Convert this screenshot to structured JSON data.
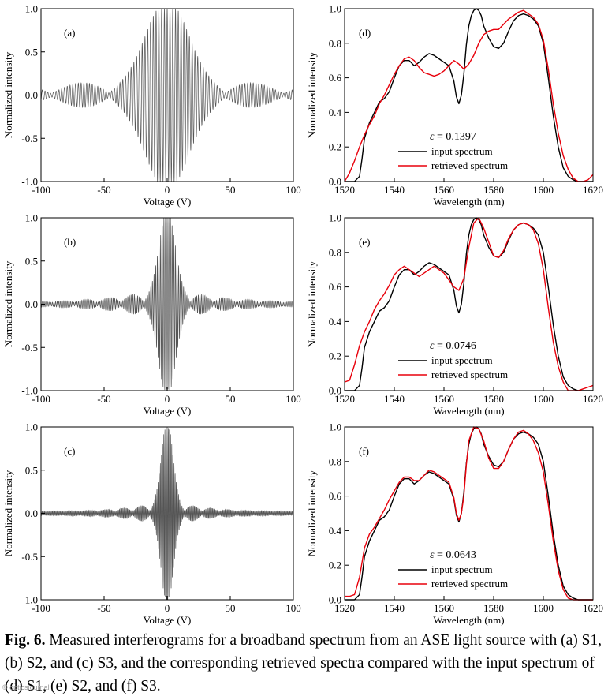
{
  "chart_data": [
    {
      "type": "line",
      "panel_label": "(a)",
      "xlabel": "Voltage (V)",
      "ylabel": "Normalized intensity",
      "xlim": [
        -100,
        100
      ],
      "ylim": [
        -1.0,
        1.0
      ],
      "xticks": [
        -100,
        -50,
        0,
        50,
        100
      ],
      "yticks": [
        -1.0,
        -0.5,
        0.0,
        0.5,
        1.0
      ],
      "ytick_labels": [
        "-1.0",
        "-0.5",
        "0.0",
        "0.5",
        "1.0"
      ],
      "series": [
        {
          "name": "interferogram",
          "color": "#555555",
          "fringe_period_V": 2.2,
          "envelope_width_V": 20,
          "sidelobe_amplitude": 0.26
        }
      ]
    },
    {
      "type": "line",
      "panel_label": "(b)",
      "xlabel": "Voltage (V)",
      "ylabel": "Normalized intensity",
      "xlim": [
        -100,
        100
      ],
      "ylim": [
        -1.0,
        1.0
      ],
      "xticks": [
        -100,
        -50,
        0,
        50,
        100
      ],
      "yticks": [
        -1.0,
        -0.5,
        0.0,
        0.5,
        1.0
      ],
      "ytick_labels": [
        "-1.0",
        "-0.5",
        "0.0",
        "0.5",
        "1.0"
      ],
      "series": [
        {
          "name": "interferogram",
          "color": "#555555",
          "fringe_period_V": 1.3,
          "envelope_width_V": 8,
          "sidelobe_amplitude": 0.2
        }
      ]
    },
    {
      "type": "line",
      "panel_label": "(c)",
      "xlabel": "Voltage (V)",
      "ylabel": "Normalized intensity",
      "xlim": [
        -100,
        100
      ],
      "ylim": [
        -1.0,
        1.0
      ],
      "xticks": [
        -100,
        -50,
        0,
        50,
        100
      ],
      "yticks": [
        -1.0,
        -0.5,
        0.0,
        0.5,
        1.0
      ],
      "ytick_labels": [
        "-1.0",
        "-0.5",
        "0.0",
        "0.5",
        "1.0"
      ],
      "series": [
        {
          "name": "interferogram",
          "color": "#555555",
          "fringe_period_V": 0.9,
          "envelope_width_V": 6,
          "sidelobe_amplitude": 0.15
        }
      ]
    },
    {
      "type": "line",
      "panel_label": "(d)",
      "xlabel": "Wavelength (nm)",
      "ylabel": "Normalized intensity",
      "xlim": [
        1520,
        1620
      ],
      "ylim": [
        0.0,
        1.0
      ],
      "xticks": [
        1520,
        1540,
        1560,
        1580,
        1600,
        1620
      ],
      "yticks": [
        0.0,
        0.2,
        0.4,
        0.6,
        0.8,
        1.0
      ],
      "ytick_labels": [
        "0.0",
        "0.2",
        "0.4",
        "0.6",
        "0.8",
        "1.0"
      ],
      "epsilon_label": "ε = 0.1397",
      "legend": [
        {
          "label": "input spectrum",
          "color": "#000000"
        },
        {
          "label": "retrieved spectrum",
          "color": "#e8000b"
        }
      ],
      "series": [
        {
          "name": "input spectrum",
          "color": "#000000",
          "x": [
            1520,
            1522,
            1524,
            1526,
            1527,
            1528,
            1530,
            1532,
            1534,
            1536,
            1538,
            1540,
            1542,
            1544,
            1546,
            1548,
            1550,
            1552,
            1554,
            1556,
            1558,
            1560,
            1562,
            1564,
            1565,
            1566,
            1567,
            1568,
            1569,
            1570,
            1571,
            1572,
            1573,
            1574,
            1575,
            1576,
            1578,
            1580,
            1582,
            1584,
            1586,
            1588,
            1590,
            1592,
            1594,
            1596,
            1598,
            1600,
            1602,
            1604,
            1606,
            1608,
            1610,
            1612,
            1614,
            1616,
            1618,
            1620
          ],
          "y": [
            0,
            0,
            0,
            0.03,
            0.13,
            0.25,
            0.34,
            0.4,
            0.46,
            0.48,
            0.52,
            0.6,
            0.67,
            0.7,
            0.7,
            0.67,
            0.69,
            0.72,
            0.74,
            0.73,
            0.71,
            0.69,
            0.67,
            0.58,
            0.49,
            0.45,
            0.5,
            0.62,
            0.79,
            0.9,
            0.96,
            0.99,
            1.0,
            0.99,
            0.96,
            0.9,
            0.83,
            0.78,
            0.77,
            0.8,
            0.87,
            0.93,
            0.96,
            0.97,
            0.96,
            0.94,
            0.9,
            0.8,
            0.6,
            0.38,
            0.2,
            0.08,
            0.03,
            0.01,
            0,
            0,
            0,
            0
          ]
        },
        {
          "name": "retrieved spectrum",
          "color": "#e8000b",
          "x": [
            1520,
            1522,
            1524,
            1526,
            1528,
            1530,
            1532,
            1534,
            1536,
            1538,
            1540,
            1542,
            1544,
            1546,
            1548,
            1550,
            1552,
            1554,
            1556,
            1558,
            1560,
            1562,
            1564,
            1566,
            1568,
            1570,
            1572,
            1574,
            1576,
            1578,
            1580,
            1582,
            1584,
            1586,
            1588,
            1590,
            1592,
            1594,
            1596,
            1598,
            1600,
            1602,
            1604,
            1606,
            1608,
            1610,
            1612,
            1614,
            1616,
            1618,
            1620
          ],
          "y": [
            0,
            0.05,
            0.12,
            0.2,
            0.27,
            0.33,
            0.38,
            0.45,
            0.5,
            0.56,
            0.62,
            0.67,
            0.71,
            0.72,
            0.7,
            0.66,
            0.63,
            0.62,
            0.61,
            0.62,
            0.64,
            0.67,
            0.7,
            0.68,
            0.65,
            0.68,
            0.73,
            0.8,
            0.85,
            0.87,
            0.88,
            0.88,
            0.91,
            0.94,
            0.96,
            0.98,
            0.99,
            0.97,
            0.95,
            0.91,
            0.82,
            0.65,
            0.45,
            0.28,
            0.15,
            0.07,
            0.02,
            0,
            0,
            0.01,
            0.04
          ]
        }
      ]
    },
    {
      "type": "line",
      "panel_label": "(e)",
      "xlabel": "Wavelength (nm)",
      "ylabel": "Normalized intensity",
      "xlim": [
        1520,
        1620
      ],
      "ylim": [
        0.0,
        1.0
      ],
      "xticks": [
        1520,
        1540,
        1560,
        1580,
        1600,
        1620
      ],
      "yticks": [
        0.0,
        0.2,
        0.4,
        0.6,
        0.8,
        1.0
      ],
      "ytick_labels": [
        "0.0",
        "0.2",
        "0.4",
        "0.6",
        "0.8",
        "1.0"
      ],
      "epsilon_label": "ε = 0.0746",
      "legend": [
        {
          "label": "input spectrum",
          "color": "#000000"
        },
        {
          "label": "retrieved spectrum",
          "color": "#e8000b"
        }
      ],
      "series": [
        {
          "name": "input spectrum",
          "color": "#000000",
          "x": [
            1520,
            1522,
            1524,
            1526,
            1527,
            1528,
            1530,
            1532,
            1534,
            1536,
            1538,
            1540,
            1542,
            1544,
            1546,
            1548,
            1550,
            1552,
            1554,
            1556,
            1558,
            1560,
            1562,
            1564,
            1565,
            1566,
            1567,
            1568,
            1569,
            1570,
            1571,
            1572,
            1573,
            1574,
            1575,
            1576,
            1578,
            1580,
            1582,
            1584,
            1586,
            1588,
            1590,
            1592,
            1594,
            1596,
            1598,
            1600,
            1602,
            1604,
            1606,
            1608,
            1610,
            1612,
            1614,
            1616,
            1618,
            1620
          ],
          "y": [
            0,
            0,
            0,
            0.03,
            0.13,
            0.25,
            0.34,
            0.4,
            0.46,
            0.48,
            0.52,
            0.6,
            0.67,
            0.7,
            0.7,
            0.67,
            0.69,
            0.72,
            0.74,
            0.73,
            0.71,
            0.69,
            0.67,
            0.58,
            0.49,
            0.45,
            0.5,
            0.62,
            0.79,
            0.9,
            0.96,
            0.99,
            1.0,
            0.99,
            0.96,
            0.9,
            0.83,
            0.78,
            0.77,
            0.8,
            0.87,
            0.93,
            0.96,
            0.97,
            0.96,
            0.94,
            0.9,
            0.8,
            0.6,
            0.38,
            0.2,
            0.08,
            0.03,
            0.01,
            0,
            0,
            0,
            0
          ]
        },
        {
          "name": "retrieved spectrum",
          "color": "#e8000b",
          "x": [
            1520,
            1522,
            1524,
            1526,
            1528,
            1530,
            1532,
            1534,
            1536,
            1538,
            1540,
            1542,
            1544,
            1546,
            1548,
            1550,
            1552,
            1554,
            1556,
            1558,
            1560,
            1562,
            1564,
            1566,
            1568,
            1570,
            1572,
            1574,
            1576,
            1578,
            1580,
            1582,
            1584,
            1586,
            1588,
            1590,
            1592,
            1594,
            1596,
            1598,
            1600,
            1602,
            1604,
            1606,
            1608,
            1610,
            1612,
            1614,
            1616,
            1618,
            1620
          ],
          "y": [
            0.05,
            0.06,
            0.15,
            0.26,
            0.34,
            0.4,
            0.47,
            0.52,
            0.56,
            0.61,
            0.67,
            0.7,
            0.72,
            0.7,
            0.68,
            0.66,
            0.68,
            0.7,
            0.72,
            0.7,
            0.68,
            0.64,
            0.6,
            0.58,
            0.65,
            0.83,
            0.97,
            1.0,
            0.94,
            0.86,
            0.78,
            0.77,
            0.81,
            0.88,
            0.93,
            0.96,
            0.97,
            0.96,
            0.93,
            0.85,
            0.7,
            0.48,
            0.28,
            0.14,
            0.05,
            0,
            0,
            0,
            0.01,
            0.02,
            0.03
          ]
        }
      ]
    },
    {
      "type": "line",
      "panel_label": "(f)",
      "xlabel": "Wavelength (nm)",
      "ylabel": "Normalized intensity",
      "xlim": [
        1520,
        1620
      ],
      "ylim": [
        0.0,
        1.0
      ],
      "xticks": [
        1520,
        1540,
        1560,
        1580,
        1600,
        1620
      ],
      "yticks": [
        0.0,
        0.2,
        0.4,
        0.6,
        0.8,
        1.0
      ],
      "ytick_labels": [
        "0.0",
        "0.2",
        "0.4",
        "0.6",
        "0.8",
        "1.0"
      ],
      "epsilon_label": "ε = 0.0643",
      "legend": [
        {
          "label": "input spectrum",
          "color": "#000000"
        },
        {
          "label": "retrieved spectrum",
          "color": "#e8000b"
        }
      ],
      "series": [
        {
          "name": "input spectrum",
          "color": "#000000",
          "x": [
            1520,
            1522,
            1524,
            1526,
            1527,
            1528,
            1530,
            1532,
            1534,
            1536,
            1538,
            1540,
            1542,
            1544,
            1546,
            1548,
            1550,
            1552,
            1554,
            1556,
            1558,
            1560,
            1562,
            1564,
            1565,
            1566,
            1567,
            1568,
            1569,
            1570,
            1571,
            1572,
            1573,
            1574,
            1575,
            1576,
            1578,
            1580,
            1582,
            1584,
            1586,
            1588,
            1590,
            1592,
            1594,
            1596,
            1598,
            1600,
            1602,
            1604,
            1606,
            1608,
            1610,
            1612,
            1614,
            1616,
            1618,
            1620
          ],
          "y": [
            0,
            0,
            0,
            0.03,
            0.13,
            0.25,
            0.34,
            0.4,
            0.46,
            0.48,
            0.52,
            0.6,
            0.67,
            0.7,
            0.7,
            0.67,
            0.69,
            0.72,
            0.74,
            0.73,
            0.71,
            0.69,
            0.67,
            0.58,
            0.49,
            0.45,
            0.5,
            0.62,
            0.79,
            0.9,
            0.96,
            0.99,
            1.0,
            0.99,
            0.96,
            0.9,
            0.83,
            0.78,
            0.77,
            0.8,
            0.87,
            0.93,
            0.96,
            0.97,
            0.96,
            0.94,
            0.9,
            0.8,
            0.6,
            0.38,
            0.2,
            0.08,
            0.03,
            0.01,
            0,
            0,
            0,
            0
          ]
        },
        {
          "name": "retrieved spectrum",
          "color": "#e8000b",
          "x": [
            1520,
            1522,
            1524,
            1526,
            1528,
            1530,
            1532,
            1534,
            1536,
            1538,
            1540,
            1542,
            1544,
            1546,
            1548,
            1550,
            1552,
            1554,
            1556,
            1558,
            1560,
            1562,
            1564,
            1565,
            1566,
            1567,
            1568,
            1569,
            1570,
            1572,
            1574,
            1576,
            1578,
            1580,
            1582,
            1584,
            1586,
            1588,
            1590,
            1592,
            1594,
            1596,
            1598,
            1600,
            1602,
            1604,
            1606,
            1608,
            1610,
            1612,
            1614,
            1616,
            1618,
            1620
          ],
          "y": [
            0.02,
            0.02,
            0.03,
            0.13,
            0.3,
            0.38,
            0.42,
            0.47,
            0.52,
            0.58,
            0.63,
            0.68,
            0.71,
            0.71,
            0.69,
            0.69,
            0.72,
            0.75,
            0.74,
            0.72,
            0.7,
            0.68,
            0.59,
            0.5,
            0.46,
            0.5,
            0.6,
            0.78,
            0.92,
            1.0,
            0.99,
            0.92,
            0.82,
            0.76,
            0.76,
            0.8,
            0.87,
            0.93,
            0.97,
            0.98,
            0.96,
            0.92,
            0.85,
            0.74,
            0.55,
            0.34,
            0.17,
            0.06,
            0.01,
            0,
            0,
            0,
            0,
            0
          ]
        }
      ]
    }
  ],
  "caption": {
    "label": "Fig. 6.",
    "text": "Measured interferograms for a broadband spectrum from an ASE light source with (a) S1, (b) S2, and (c) S3, and the corresponding retrieved spectra compared with the input spectrum of (d) S1, (e) S2, and (f) S3."
  }
}
